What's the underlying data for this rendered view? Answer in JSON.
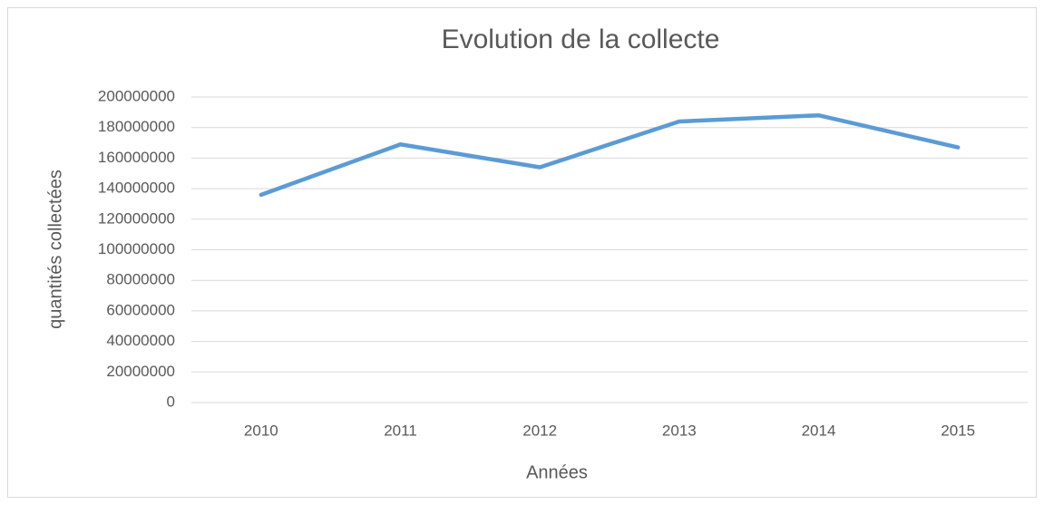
{
  "chart_data": {
    "type": "line",
    "title": "Evolution de la collecte",
    "xlabel": "Années",
    "ylabel": "quantités collectées",
    "categories": [
      "2010",
      "2011",
      "2012",
      "2013",
      "2014",
      "2015"
    ],
    "series": [
      {
        "name": "quantités collectées",
        "color": "#5b9bd5",
        "values": [
          136000000,
          169000000,
          154000000,
          184000000,
          188000000,
          167000000
        ]
      }
    ],
    "ylim": [
      0,
      200000000
    ],
    "yticks": [
      0,
      20000000,
      40000000,
      60000000,
      80000000,
      100000000,
      120000000,
      140000000,
      160000000,
      180000000,
      200000000
    ],
    "grid": true
  }
}
